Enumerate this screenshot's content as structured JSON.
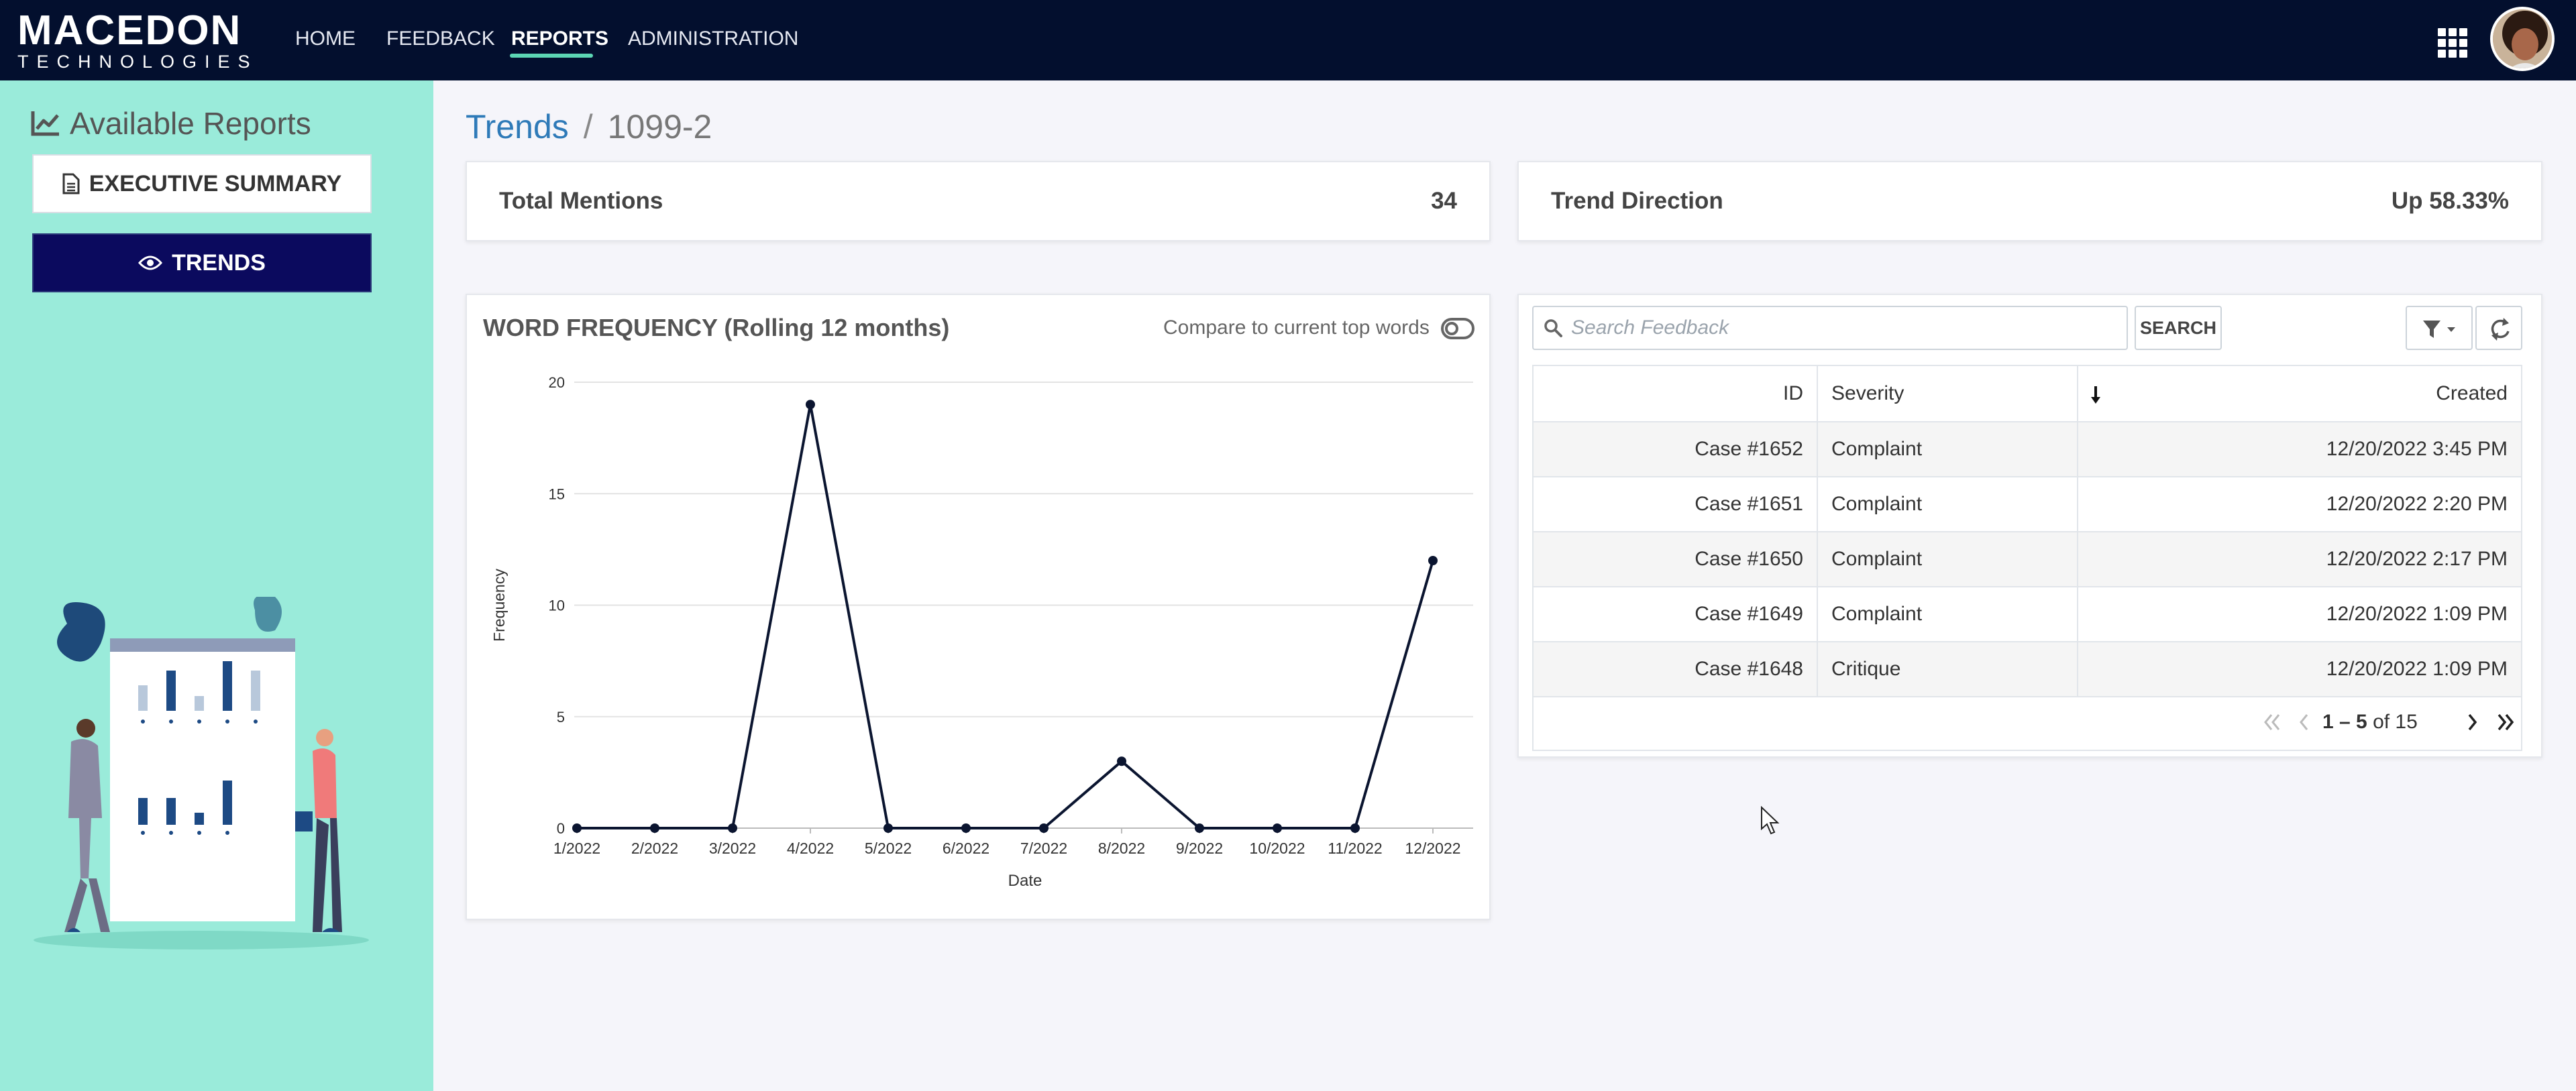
{
  "navbar": {
    "logo_main": "MACEDON",
    "logo_sub": "TECHNOLOGIES",
    "items": [
      {
        "label": "HOME",
        "active": false
      },
      {
        "label": "FEEDBACK",
        "active": false
      },
      {
        "label": "REPORTS",
        "active": true
      },
      {
        "label": "ADMINISTRATION",
        "active": false
      }
    ],
    "icons": [
      "apps-grid-icon",
      "user-avatar"
    ]
  },
  "sidebar": {
    "title": "Available Reports",
    "title_icon": "line-chart-icon",
    "buttons": [
      {
        "label": "EXECUTIVE SUMMARY",
        "icon": "document-icon",
        "active": false
      },
      {
        "label": "TRENDS",
        "icon": "eye-icon",
        "active": true
      }
    ]
  },
  "breadcrumb": {
    "parent": "Trends",
    "separator": "/",
    "current": "1099-2"
  },
  "stats": {
    "total_mentions_label": "Total Mentions",
    "total_mentions_value": "34",
    "trend_direction_label": "Trend Direction",
    "trend_direction_value": "Up 58.33%"
  },
  "chart_panel": {
    "title": "WORD FREQUENCY (Rolling 12 months)",
    "compare_label": "Compare to current top words",
    "compare_enabled": false
  },
  "chart_data": {
    "type": "line",
    "x": [
      "1/2022",
      "2/2022",
      "3/2022",
      "4/2022",
      "5/2022",
      "6/2022",
      "7/2022",
      "8/2022",
      "9/2022",
      "10/2022",
      "11/2022",
      "12/2022"
    ],
    "series": [
      {
        "values": [
          0,
          0,
          0,
          19,
          0,
          0,
          0,
          3,
          0,
          0,
          0,
          12
        ],
        "color": "#0b1530"
      }
    ],
    "title": "",
    "xlabel": "Date",
    "ylabel": "Frequency",
    "ylim": [
      0,
      20
    ],
    "yticks": [
      "0",
      "5",
      "10",
      "15",
      "20"
    ],
    "grid": true,
    "legend": "none"
  },
  "feedback": {
    "search_placeholder": "Search Feedback",
    "search_value": "",
    "search_button": "SEARCH",
    "columns": {
      "id": "ID",
      "severity": "Severity",
      "created": "Created"
    },
    "rows": [
      {
        "id": "Case #1652",
        "severity": "Complaint",
        "created": "12/20/2022 3:45 PM"
      },
      {
        "id": "Case #1651",
        "severity": "Complaint",
        "created": "12/20/2022 2:20 PM"
      },
      {
        "id": "Case #1650",
        "severity": "Complaint",
        "created": "12/20/2022 2:17 PM"
      },
      {
        "id": "Case #1649",
        "severity": "Complaint",
        "created": "12/20/2022 1:09 PM"
      },
      {
        "id": "Case #1648",
        "severity": "Critique",
        "created": "12/20/2022 1:09 PM"
      }
    ],
    "pager": {
      "range": "1 – 5",
      "of_text": "of 15"
    }
  },
  "colors": {
    "navbar": "#030f2e",
    "sidebar": "#9aebda",
    "active_underline": "#5cd6b4",
    "trends_button": "#0b0a5e",
    "link": "#2e7ab8",
    "chart_line": "#0b1530"
  }
}
